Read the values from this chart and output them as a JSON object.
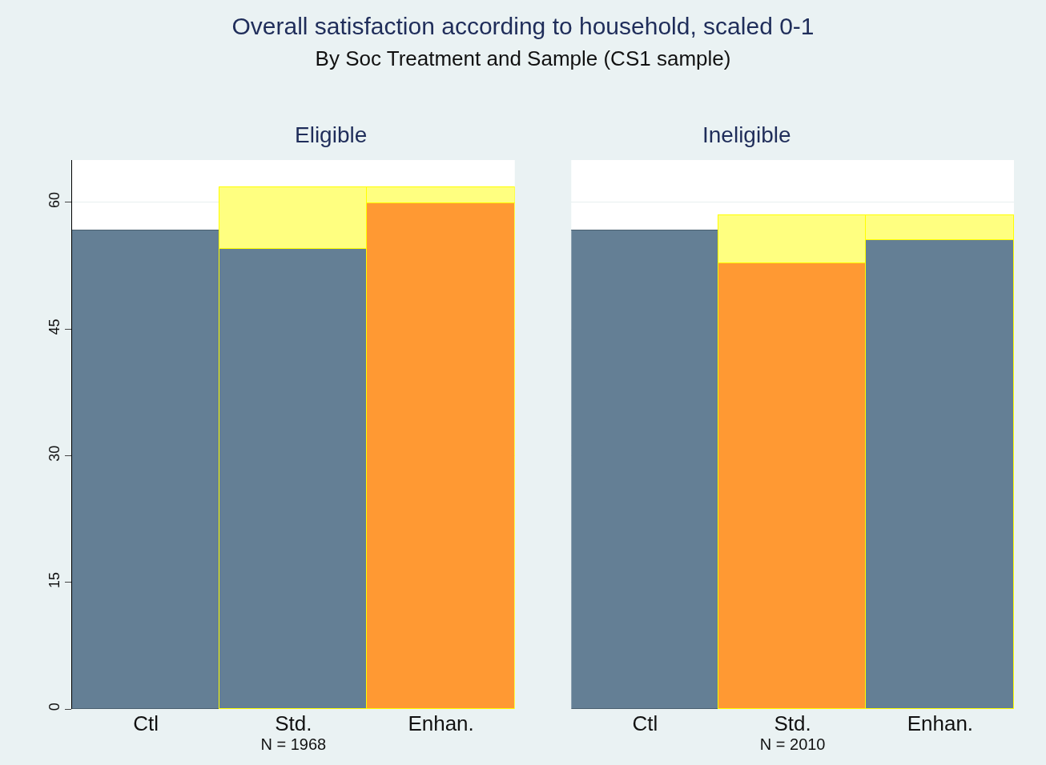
{
  "chart_data": [
    {
      "type": "bar",
      "title": "Overall satisfaction according to household, scaled 0-1",
      "subtitle": "By Soc Treatment and Sample (CS1 sample)",
      "annotations": [
        "Eligible"
      ],
      "xlabel": "N = 1968",
      "categories": [
        "Ctl",
        "Std.",
        "Enhan."
      ],
      "stacked": true,
      "series": [
        {
          "colors": [
            "#647f95",
            "#647f95",
            "#ff9933"
          ],
          "values": [
            56.7,
            54.5,
            59.9
          ]
        },
        {
          "color": "#ffff80",
          "values": [
            null,
            7.3,
            1.9
          ]
        }
      ],
      "ylim": [
        0,
        65
      ],
      "yticks": [
        0,
        15,
        30,
        45,
        60
      ],
      "grid": "y"
    },
    {
      "type": "bar",
      "annotations": [
        "Ineligible"
      ],
      "xlabel": "N = 2010",
      "categories": [
        "Ctl",
        "Std.",
        "Enhan."
      ],
      "stacked": true,
      "series": [
        {
          "colors": [
            "#647f95",
            "#ff9933",
            "#647f95"
          ],
          "values": [
            56.7,
            52.8,
            55.5
          ]
        },
        {
          "color": "#ffff80",
          "values": [
            null,
            5.7,
            3.0
          ]
        }
      ],
      "ylim": [
        0,
        65
      ],
      "yticks": [
        0,
        15,
        30,
        45,
        60
      ],
      "grid": "y",
      "tick_labels": "x"
    }
  ]
}
